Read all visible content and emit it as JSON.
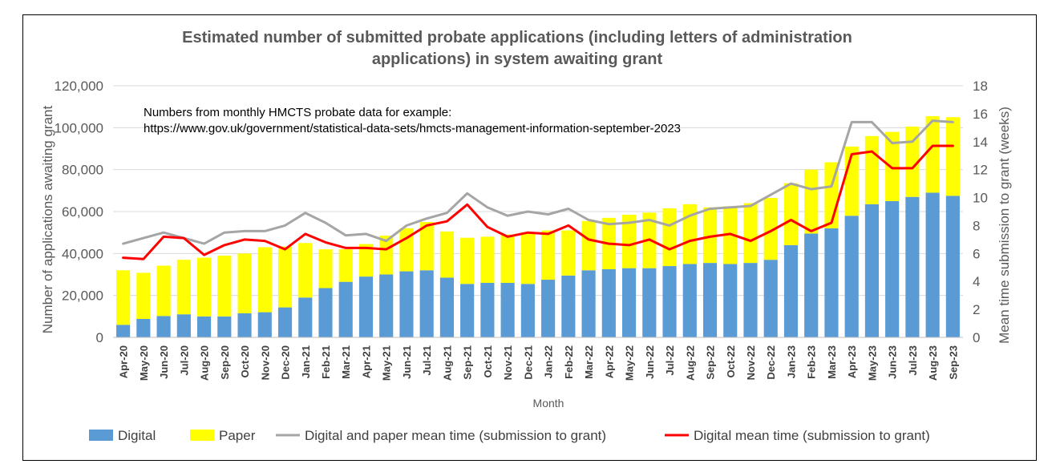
{
  "chart_data": {
    "type": "bar",
    "stacked": true,
    "title_lines": [
      "Estimated number of submitted probate applications (including letters of administration",
      "applications) in system awaiting grant"
    ],
    "note_lines": [
      "Numbers from monthly HMCTS probate data for example:",
      "https://www.gov.uk/government/statistical-data-sets/hmcts-management-information-september-2023"
    ],
    "xlabel": "Month",
    "ylabel": "Number of applications awaiting grant",
    "y2label": "Mean time submission to grant (weeks)",
    "ylim": [
      0,
      120000
    ],
    "y2lim": [
      0,
      18
    ],
    "yticks": [
      "0",
      "20,000",
      "40,000",
      "60,000",
      "80,000",
      "100,000",
      "120,000"
    ],
    "y2ticks": [
      "0",
      "2",
      "4",
      "6",
      "8",
      "10",
      "12",
      "14",
      "16",
      "18"
    ],
    "categories": [
      "Apr-20",
      "May-20",
      "Jun-20",
      "Jul-20",
      "Aug-20",
      "Sep-20",
      "Oct-20",
      "Nov-20",
      "Dec-20",
      "Jan-21",
      "Feb-21",
      "Mar-21",
      "Apr-21",
      "May-21",
      "Jun-21",
      "Jul-21",
      "Aug-21",
      "Sep-21",
      "Oct-21",
      "Nov-21",
      "Dec-21",
      "Jan-22",
      "Feb-22",
      "Mar-22",
      "Apr-22",
      "May-22",
      "Jun-22",
      "Jul-22",
      "Aug-22",
      "Sep-22",
      "Oct-22",
      "Nov-22",
      "Dec-22",
      "Jan-23",
      "Feb-23",
      "Mar-23",
      "Apr-23",
      "May-23",
      "Jun-23",
      "Jul-23",
      "Aug-23",
      "Sep-23"
    ],
    "series": [
      {
        "name": "Digital",
        "kind": "bar",
        "axis": "left",
        "color": "#5B9BD5",
        "values": [
          6000,
          8800,
          10200,
          11000,
          10000,
          10000,
          11500,
          12000,
          14300,
          19000,
          23500,
          26500,
          29000,
          30000,
          31500,
          32000,
          28500,
          25500,
          26000,
          26000,
          25500,
          27500,
          29500,
          32000,
          32500,
          33000,
          33000,
          34000,
          35000,
          35500,
          35000,
          35500,
          37000,
          44000,
          49500,
          52000,
          58000,
          63500,
          65000,
          67000,
          69000,
          67500
        ]
      },
      {
        "name": "Paper",
        "kind": "bar",
        "axis": "left",
        "color": "#FFFF00",
        "values": [
          26000,
          22000,
          24000,
          26000,
          28000,
          29000,
          28500,
          31000,
          29000,
          26000,
          18500,
          15500,
          15500,
          18500,
          20500,
          23000,
          22000,
          22000,
          22000,
          23000,
          24500,
          23500,
          21500,
          23500,
          24500,
          25500,
          26500,
          27500,
          28500,
          26500,
          27500,
          28500,
          29500,
          29500,
          30500,
          31500,
          33000,
          32500,
          33000,
          33500,
          36500,
          37500
        ]
      },
      {
        "name": "Digital and paper mean time (submission to grant)",
        "kind": "line",
        "axis": "right",
        "color": "#A5A5A5",
        "values": [
          6.7,
          7.1,
          7.5,
          7.1,
          6.7,
          7.5,
          7.6,
          7.6,
          8.0,
          8.9,
          8.2,
          7.3,
          7.4,
          6.9,
          8.0,
          8.5,
          8.9,
          10.3,
          9.3,
          8.7,
          9.0,
          8.8,
          9.2,
          8.4,
          8.1,
          8.2,
          8.4,
          8.0,
          8.7,
          9.2,
          9.3,
          9.4,
          10.2,
          11.0,
          10.6,
          10.8,
          15.4,
          15.4,
          13.9,
          14.0,
          15.5,
          15.4
        ]
      },
      {
        "name": "Digital mean time (submission to grant)",
        "kind": "line",
        "axis": "right",
        "color": "#FF0000",
        "values": [
          5.7,
          5.6,
          7.2,
          7.1,
          5.9,
          6.6,
          7.0,
          6.9,
          6.3,
          7.4,
          6.8,
          6.4,
          6.4,
          6.3,
          7.1,
          8.0,
          8.3,
          9.5,
          7.9,
          7.2,
          7.5,
          7.4,
          8.0,
          7.0,
          6.7,
          6.6,
          7.0,
          6.3,
          6.9,
          7.2,
          7.4,
          6.9,
          7.6,
          8.4,
          7.6,
          8.2,
          13.1,
          13.3,
          12.1,
          12.1,
          13.7,
          13.7
        ]
      }
    ],
    "legend_position": "bottom",
    "grid": true
  }
}
